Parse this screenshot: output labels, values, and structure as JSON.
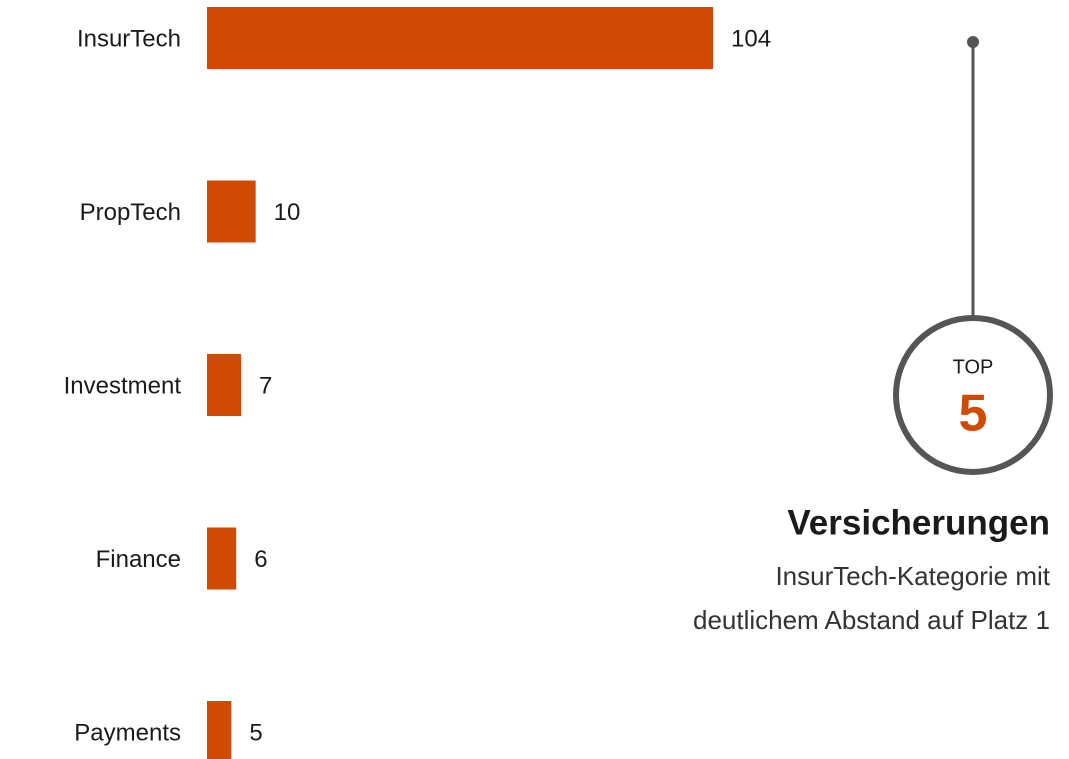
{
  "chart_data": {
    "type": "bar",
    "orientation": "horizontal",
    "categories": [
      "InsurTech",
      "PropTech",
      "Investment",
      "Finance",
      "Payments"
    ],
    "values": [
      104,
      10,
      7,
      6,
      5
    ],
    "color": "#d04a02",
    "annotation": {
      "badge_label": "TOP",
      "badge_rank": 5,
      "title": "Versicherungen",
      "text": [
        "InsurTech-Kategorie mit",
        "deutlichem Abstand auf Platz 1"
      ]
    }
  }
}
